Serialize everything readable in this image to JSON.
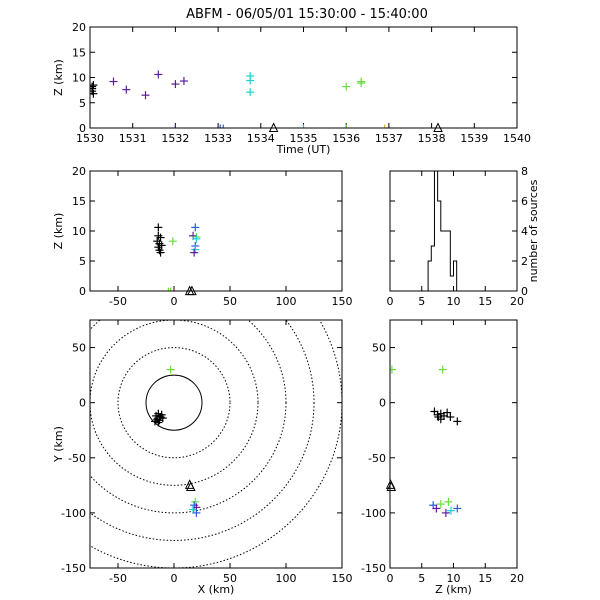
{
  "chart_data": [
    {
      "id": "time_height",
      "type": "scatter",
      "title": "ABFM - 06/05/01 15:30:00 - 15:40:00",
      "xlabel": "Time (UT)",
      "ylabel": "Z (km)",
      "xlim": [
        1530,
        1540
      ],
      "ylim": [
        0,
        20
      ],
      "xticks": [
        "1530",
        "1531",
        "1532",
        "1533",
        "1534",
        "1535",
        "1536",
        "1537",
        "1538",
        "1539",
        "1540"
      ],
      "yticks": [
        "0",
        "5",
        "10",
        "15",
        "20"
      ],
      "points": [
        {
          "x": 1530.05,
          "y": 8.2,
          "color": "#000000"
        },
        {
          "x": 1530.05,
          "y": 7.8,
          "color": "#000000"
        },
        {
          "x": 1530.05,
          "y": 7.3,
          "color": "#000000"
        },
        {
          "x": 1530.08,
          "y": 8.5,
          "color": "#000000"
        },
        {
          "x": 1530.08,
          "y": 6.8,
          "color": "#000000"
        },
        {
          "x": 1530.55,
          "y": 9.2,
          "color": "#5a1fa0"
        },
        {
          "x": 1530.85,
          "y": 7.6,
          "color": "#5a1fa0"
        },
        {
          "x": 1531.3,
          "y": 6.5,
          "color": "#5a1fa0"
        },
        {
          "x": 1531.6,
          "y": 10.6,
          "color": "#5a1fa0"
        },
        {
          "x": 1532.0,
          "y": 8.7,
          "color": "#5a1fa0"
        },
        {
          "x": 1532.2,
          "y": 9.3,
          "color": "#5a1fa0"
        },
        {
          "x": 1533.75,
          "y": 10.3,
          "color": "#1ad2d2"
        },
        {
          "x": 1533.75,
          "y": 9.4,
          "color": "#1ad2d2"
        },
        {
          "x": 1533.75,
          "y": 7.1,
          "color": "#1ad2d2"
        },
        {
          "x": 1536.0,
          "y": 8.2,
          "color": "#66e03a"
        },
        {
          "x": 1536.35,
          "y": 9.2,
          "color": "#66e03a"
        },
        {
          "x": 1536.35,
          "y": 8.9,
          "color": "#66e03a"
        },
        {
          "x": 1532.0,
          "y": -0.1,
          "color": "#5a1fa0"
        },
        {
          "x": 1533.05,
          "y": -0.1,
          "color": "#2a5ee0"
        },
        {
          "x": 1533.12,
          "y": -0.1,
          "color": "#2a5ee0"
        },
        {
          "x": 1535.0,
          "y": -0.1,
          "color": "#1ad2d2"
        },
        {
          "x": 1536.0,
          "y": -0.1,
          "color": "#66e03a"
        },
        {
          "x": 1536.9,
          "y": -0.1,
          "color": "#e0c020"
        }
      ],
      "stations": [
        {
          "x": 1534.3,
          "y": -0.1
        },
        {
          "x": 1538.15,
          "y": -0.1
        }
      ]
    },
    {
      "id": "x_height",
      "type": "scatter",
      "xlabel": "",
      "ylabel": "Z (km)",
      "xlim": [
        -75,
        150
      ],
      "ylim": [
        0,
        20
      ],
      "xticks": [
        "-50",
        "0",
        "50",
        "100",
        "150"
      ],
      "yticks": [
        "0",
        "5",
        "10",
        "15",
        "20"
      ],
      "points": [
        {
          "x": -14,
          "y": 10.6,
          "color": "#000000"
        },
        {
          "x": -14,
          "y": 9.2,
          "color": "#000000"
        },
        {
          "x": -12,
          "y": 8.9,
          "color": "#000000"
        },
        {
          "x": -15,
          "y": 8.3,
          "color": "#000000"
        },
        {
          "x": -13,
          "y": 7.9,
          "color": "#000000"
        },
        {
          "x": -11,
          "y": 7.6,
          "color": "#000000"
        },
        {
          "x": -14,
          "y": 7.3,
          "color": "#000000"
        },
        {
          "x": -13,
          "y": 6.8,
          "color": "#000000"
        },
        {
          "x": -12,
          "y": 6.4,
          "color": "#000000"
        },
        {
          "x": -1,
          "y": 8.3,
          "color": "#66e03a"
        },
        {
          "x": 19,
          "y": 10.6,
          "color": "#2a5ee0"
        },
        {
          "x": 17,
          "y": 9.2,
          "color": "#5a1fa0"
        },
        {
          "x": 20,
          "y": 9.0,
          "color": "#66e03a"
        },
        {
          "x": 20,
          "y": 8.7,
          "color": "#1ad2d2"
        },
        {
          "x": 19,
          "y": 7.5,
          "color": "#2a5ee0"
        },
        {
          "x": 19,
          "y": 6.9,
          "color": "#1ad2d2"
        },
        {
          "x": 18,
          "y": 6.4,
          "color": "#5a1fa0"
        },
        {
          "x": -5,
          "y": -0.1,
          "color": "#66e03a"
        },
        {
          "x": -3,
          "y": -0.1,
          "color": "#66e03a"
        }
      ],
      "stations": [
        {
          "x": 14,
          "y": -0.1
        },
        {
          "x": 16,
          "y": -0.1
        }
      ]
    },
    {
      "id": "height_histogram",
      "type": "histogram",
      "xlabel": "",
      "ylabel": "number of sources",
      "xlim": [
        0,
        20
      ],
      "ylim": [
        0,
        8
      ],
      "xticks": [
        "0",
        "5",
        "10",
        "15",
        "20"
      ],
      "yticks": [
        "0",
        "2",
        "4",
        "6",
        "8"
      ],
      "bin_width": 0.5,
      "bins": [
        {
          "x0": 3.5,
          "count": 0
        },
        {
          "x0": 4.0,
          "count": 0
        },
        {
          "x0": 4.5,
          "count": 0
        },
        {
          "x0": 5.0,
          "count": 0
        },
        {
          "x0": 5.5,
          "count": 0
        },
        {
          "x0": 6.0,
          "count": 2
        },
        {
          "x0": 6.5,
          "count": 3
        },
        {
          "x0": 7.0,
          "count": 8
        },
        {
          "x0": 7.5,
          "count": 6
        },
        {
          "x0": 8.0,
          "count": 4
        },
        {
          "x0": 8.5,
          "count": 4
        },
        {
          "x0": 9.0,
          "count": 4
        },
        {
          "x0": 9.5,
          "count": 1
        },
        {
          "x0": 10.0,
          "count": 2
        },
        {
          "x0": 10.5,
          "count": 0
        },
        {
          "x0": 11.0,
          "count": 0
        },
        {
          "x0": 11.5,
          "count": 0
        },
        {
          "x0": 12.0,
          "count": 0
        }
      ]
    },
    {
      "id": "plan_view",
      "type": "scatter",
      "xlabel": "X (km)",
      "ylabel": "Y (km)",
      "xlim": [
        -75,
        150
      ],
      "ylim": [
        -150,
        75
      ],
      "xticks": [
        "-50",
        "0",
        "50",
        "100",
        "150"
      ],
      "yticks": [
        "-150",
        "-100",
        "-50",
        "0",
        "50"
      ],
      "range_rings_km": [
        25,
        50,
        75,
        100,
        125,
        150
      ],
      "points": [
        {
          "x": -3,
          "y": 30,
          "color": "#66e03a"
        },
        {
          "x": -16,
          "y": -12,
          "color": "#000000"
        },
        {
          "x": -14,
          "y": -10,
          "color": "#000000"
        },
        {
          "x": -12,
          "y": -13,
          "color": "#000000"
        },
        {
          "x": -15,
          "y": -15,
          "color": "#000000"
        },
        {
          "x": -13,
          "y": -16,
          "color": "#000000"
        },
        {
          "x": -17,
          "y": -17,
          "color": "#000000"
        },
        {
          "x": -11,
          "y": -11,
          "color": "#000000"
        },
        {
          "x": -14,
          "y": -18,
          "color": "#000000"
        },
        {
          "x": -10,
          "y": -14,
          "color": "#000000"
        },
        {
          "x": 19,
          "y": -90,
          "color": "#66e03a"
        },
        {
          "x": 18,
          "y": -93,
          "color": "#2a5ee0"
        },
        {
          "x": 20,
          "y": -95,
          "color": "#5a1fa0"
        },
        {
          "x": 17,
          "y": -97,
          "color": "#1ad2d2"
        },
        {
          "x": 20,
          "y": -100,
          "color": "#2a5ee0"
        }
      ],
      "stations": [
        {
          "x": 14,
          "y": -75
        },
        {
          "x": 15,
          "y": -77
        }
      ]
    },
    {
      "id": "z_y_view",
      "type": "scatter",
      "xlabel": "Z (km)",
      "ylabel": "",
      "xlim": [
        0,
        20
      ],
      "ylim": [
        -150,
        75
      ],
      "xticks": [
        "0",
        "5",
        "10",
        "15",
        "20"
      ],
      "yticks": [
        "-150",
        "-100",
        "-50",
        "0",
        "50"
      ],
      "points": [
        {
          "x": 0.3,
          "y": 30,
          "color": "#66e03a"
        },
        {
          "x": 8.3,
          "y": 30,
          "color": "#66e03a"
        },
        {
          "x": 7.0,
          "y": -8,
          "color": "#000000"
        },
        {
          "x": 7.5,
          "y": -11,
          "color": "#000000"
        },
        {
          "x": 8.0,
          "y": -10,
          "color": "#000000"
        },
        {
          "x": 8.5,
          "y": -12,
          "color": "#000000"
        },
        {
          "x": 9.0,
          "y": -9,
          "color": "#000000"
        },
        {
          "x": 9.5,
          "y": -13,
          "color": "#000000"
        },
        {
          "x": 8.0,
          "y": -15,
          "color": "#000000"
        },
        {
          "x": 7.6,
          "y": -13,
          "color": "#000000"
        },
        {
          "x": 10.6,
          "y": -17,
          "color": "#000000"
        },
        {
          "x": 6.8,
          "y": -93,
          "color": "#2a5ee0"
        },
        {
          "x": 7.3,
          "y": -96,
          "color": "#5a1fa0"
        },
        {
          "x": 8.0,
          "y": -92,
          "color": "#66e03a"
        },
        {
          "x": 8.8,
          "y": -100,
          "color": "#5a1fa0"
        },
        {
          "x": 9.2,
          "y": -90,
          "color": "#66e03a"
        },
        {
          "x": 9.6,
          "y": -98,
          "color": "#1ad2d2"
        },
        {
          "x": 10.6,
          "y": -96,
          "color": "#2a5ee0"
        }
      ],
      "stations": [
        {
          "x": 0.1,
          "y": -75
        },
        {
          "x": 0.2,
          "y": -77
        }
      ]
    }
  ]
}
